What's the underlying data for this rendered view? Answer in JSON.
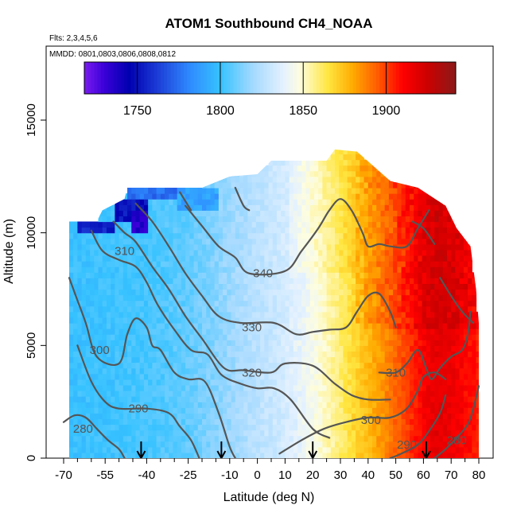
{
  "chart_data": {
    "type": "heatmap",
    "title": "ATOM1 Southbound CH4_NOAA",
    "flights_label": "Flts: 2,3,4,5,6",
    "dates_label": "MMDD: 0801,0803,0806,0808,0812",
    "xlabel": "Latitude (deg N)",
    "ylabel": "Altitude (m)",
    "xlim": [
      -70,
      80
    ],
    "ylim": [
      0,
      18000
    ],
    "x_ticks": [
      -70,
      -55,
      -40,
      -25,
      -10,
      0,
      10,
      20,
      30,
      40,
      50,
      60,
      70,
      80
    ],
    "x_minor_ticks": [
      -65,
      -60,
      -50,
      -45,
      -35,
      -30,
      -20,
      -15,
      -5,
      5,
      15,
      25,
      35,
      45,
      55,
      65,
      75
    ],
    "y_ticks": [
      0,
      5000,
      10000,
      15000
    ],
    "colorbar": {
      "range": [
        1718,
        1942
      ],
      "ticks": [
        1750,
        1800,
        1850,
        1900
      ],
      "stops": [
        {
          "v": 1718,
          "c": "#7a1cf0"
        },
        {
          "v": 1730,
          "c": "#3a00d8"
        },
        {
          "v": 1745,
          "c": "#0000b0"
        },
        {
          "v": 1762,
          "c": "#1c3cd6"
        },
        {
          "v": 1782,
          "c": "#2f8cff"
        },
        {
          "v": 1800,
          "c": "#36c2ff"
        },
        {
          "v": 1820,
          "c": "#a6daff"
        },
        {
          "v": 1838,
          "c": "#e4f1ff"
        },
        {
          "v": 1848,
          "c": "#fdfde0"
        },
        {
          "v": 1865,
          "c": "#ffe640"
        },
        {
          "v": 1880,
          "c": "#ffaa00"
        },
        {
          "v": 1895,
          "c": "#ff5a00"
        },
        {
          "v": 1910,
          "c": "#ff0000"
        },
        {
          "v": 1925,
          "c": "#cc0000"
        },
        {
          "v": 1942,
          "c": "#8b1a1a"
        }
      ]
    },
    "ch4_profile": [
      {
        "lat": -68,
        "ch4": 1800
      },
      {
        "lat": -55,
        "ch4": 1801
      },
      {
        "lat": -40,
        "ch4": 1803
      },
      {
        "lat": -25,
        "ch4": 1808
      },
      {
        "lat": -10,
        "ch4": 1818
      },
      {
        "lat": 0,
        "ch4": 1826
      },
      {
        "lat": 10,
        "ch4": 1833
      },
      {
        "lat": 20,
        "ch4": 1845
      },
      {
        "lat": 25,
        "ch4": 1852
      },
      {
        "lat": 30,
        "ch4": 1860
      },
      {
        "lat": 35,
        "ch4": 1868
      },
      {
        "lat": 40,
        "ch4": 1876
      },
      {
        "lat": 45,
        "ch4": 1884
      },
      {
        "lat": 50,
        "ch4": 1893
      },
      {
        "lat": 55,
        "ch4": 1902
      },
      {
        "lat": 60,
        "ch4": 1912
      },
      {
        "lat": 65,
        "ch4": 1918
      },
      {
        "lat": 70,
        "ch4": 1915
      },
      {
        "lat": 80,
        "ch4": 1905
      }
    ],
    "low_ch4_zones": [
      {
        "lat_min": -65,
        "lat_max": -52,
        "alt_min": 10000,
        "alt_max": 10500,
        "ch4": 1755
      },
      {
        "lat_min": -52,
        "lat_max": -40,
        "alt_min": 10500,
        "alt_max": 11400,
        "ch4": 1750
      },
      {
        "lat_min": -48,
        "lat_max": -30,
        "alt_min": 11400,
        "alt_max": 12000,
        "ch4": 1775
      },
      {
        "lat_min": -30,
        "lat_max": -15,
        "alt_min": 11000,
        "alt_max": 12000,
        "ch4": 1790
      },
      {
        "lat_min": -46,
        "lat_max": -40,
        "alt_min": 10000,
        "alt_max": 11000,
        "ch4": 1735
      }
    ],
    "coverage": [
      {
        "lat": -68,
        "alt_max": 10500
      },
      {
        "lat": -58,
        "alt_max": 10500
      },
      {
        "lat": -56,
        "alt_max": 11000
      },
      {
        "lat": -48,
        "alt_max": 11500
      },
      {
        "lat": -47,
        "alt_max": 12000
      },
      {
        "lat": -20,
        "alt_max": 12000
      },
      {
        "lat": -10,
        "alt_max": 12500
      },
      {
        "lat": 0,
        "alt_max": 12600
      },
      {
        "lat": 5,
        "alt_max": 13200
      },
      {
        "lat": 25,
        "alt_max": 13200
      },
      {
        "lat": 28,
        "alt_max": 13700
      },
      {
        "lat": 36,
        "alt_max": 13600
      },
      {
        "lat": 48,
        "alt_max": 12300
      },
      {
        "lat": 58,
        "alt_max": 12000
      },
      {
        "lat": 68,
        "alt_max": 11200
      },
      {
        "lat": 72,
        "alt_max": 10200
      },
      {
        "lat": 77,
        "alt_max": 9400
      },
      {
        "lat": 79,
        "alt_max": 7500
      },
      {
        "lat": 80,
        "alt_max": 6000
      }
    ],
    "contours": [
      {
        "label": "280",
        "label_at": {
          "lat": -63,
          "alt": 1300
        },
        "points": [
          [
            -70,
            1600
          ],
          [
            -66,
            1900
          ],
          [
            -62,
            1800
          ],
          [
            -58,
            1300
          ],
          [
            -54,
            800
          ],
          [
            -50,
            400
          ],
          [
            -48,
            0
          ]
        ]
      },
      {
        "label": "290",
        "label_at": {
          "lat": -43,
          "alt": 2200
        },
        "points": [
          [
            -65,
            5000
          ],
          [
            -60,
            3400
          ],
          [
            -55,
            2500
          ],
          [
            -50,
            2200
          ],
          [
            -40,
            2200
          ],
          [
            -32,
            2000
          ],
          [
            -28,
            1400
          ],
          [
            -24,
            800
          ],
          [
            -21,
            0
          ]
        ]
      },
      {
        "label": "300",
        "label_at": {
          "lat": -57,
          "alt": 4800
        },
        "points": [
          [
            -68,
            8000
          ],
          [
            -65,
            7000
          ],
          [
            -62,
            6000
          ],
          [
            -58,
            4500
          ],
          [
            -50,
            4200
          ],
          [
            -47,
            5500
          ],
          [
            -44,
            6200
          ],
          [
            -40,
            5800
          ],
          [
            -38,
            5000
          ],
          [
            -35,
            4800
          ],
          [
            -30,
            3800
          ],
          [
            -25,
            3500
          ],
          [
            -19,
            3400
          ],
          [
            -14,
            2000
          ],
          [
            -10,
            500
          ],
          [
            -8,
            0
          ]
        ]
      },
      {
        "label": "310",
        "label_at": {
          "lat": -48,
          "alt": 9200
        },
        "points": [
          [
            -60,
            10100
          ],
          [
            -56,
            9200
          ],
          [
            -50,
            8800
          ],
          [
            -44,
            8500
          ],
          [
            -40,
            7800
          ],
          [
            -36,
            6800
          ],
          [
            -30,
            5700
          ],
          [
            -24,
            4800
          ],
          [
            -18,
            4600
          ],
          [
            -13,
            3700
          ],
          [
            -6,
            3300
          ],
          [
            0,
            3100
          ],
          [
            6,
            3100
          ],
          [
            12,
            2600
          ],
          [
            20,
            1300
          ],
          [
            26,
            900
          ]
        ]
      },
      {
        "label": "320",
        "label_at": {
          "lat": -2,
          "alt": 3800
        },
        "points": [
          [
            -52,
            10500
          ],
          [
            -48,
            10000
          ],
          [
            -44,
            9600
          ],
          [
            -38,
            8500
          ],
          [
            -32,
            7500
          ],
          [
            -26,
            6300
          ],
          [
            -20,
            5300
          ],
          [
            -12,
            4000
          ],
          [
            -5,
            3900
          ],
          [
            5,
            3800
          ],
          [
            10,
            4200
          ],
          [
            20,
            4100
          ],
          [
            28,
            3300
          ],
          [
            34,
            2800
          ],
          [
            40,
            2600
          ],
          [
            48,
            2600
          ]
        ]
      },
      {
        "label": "330",
        "label_at": {
          "lat": -2,
          "alt": 5800
        },
        "points": [
          [
            -44,
            11300
          ],
          [
            -38,
            10500
          ],
          [
            -32,
            9400
          ],
          [
            -26,
            8200
          ],
          [
            -20,
            7200
          ],
          [
            -14,
            6300
          ],
          [
            -6,
            6000
          ],
          [
            6,
            6000
          ],
          [
            14,
            5500
          ],
          [
            20,
            5600
          ],
          [
            26,
            5700
          ],
          [
            32,
            5800
          ],
          [
            36,
            6500
          ],
          [
            40,
            7200
          ],
          [
            44,
            7300
          ],
          [
            48,
            6500
          ],
          [
            50,
            5800
          ]
        ]
      },
      {
        "label": "340",
        "label_at": {
          "lat": 2,
          "alt": 8200
        },
        "points": [
          [
            -26,
            11200
          ],
          [
            -20,
            10300
          ],
          [
            -14,
            9400
          ],
          [
            -8,
            8900
          ],
          [
            -3,
            8200
          ],
          [
            10,
            8300
          ],
          [
            16,
            9200
          ],
          [
            22,
            10200
          ],
          [
            26,
            11000
          ],
          [
            30,
            11500
          ],
          [
            34,
            11000
          ],
          [
            38,
            10000
          ],
          [
            40,
            9400
          ],
          [
            44,
            9500
          ],
          [
            48,
            9400
          ],
          [
            54,
            9400
          ],
          [
            58,
            10200
          ],
          [
            62,
            11000
          ]
        ]
      },
      {
        "label": "310",
        "label_at": {
          "lat": 50,
          "alt": 3800
        },
        "points": [
          [
            44,
            3800
          ],
          [
            50,
            3800
          ],
          [
            54,
            4200
          ],
          [
            58,
            4800
          ],
          [
            61,
            4000
          ],
          [
            63,
            3500
          ],
          [
            66,
            4000
          ],
          [
            70,
            4500
          ],
          [
            74,
            4800
          ],
          [
            76,
            5500
          ],
          [
            77,
            6500
          ]
        ]
      },
      {
        "label": "300",
        "label_at": {
          "lat": 41,
          "alt": 1700
        },
        "points": [
          [
            8,
            200
          ],
          [
            16,
            800
          ],
          [
            24,
            1300
          ],
          [
            32,
            1600
          ],
          [
            40,
            1800
          ],
          [
            48,
            1800
          ],
          [
            54,
            2200
          ],
          [
            58,
            3000
          ],
          [
            60,
            3600
          ],
          [
            64,
            3800
          ],
          [
            68,
            3500
          ]
        ]
      },
      {
        "label": "290",
        "label_at": {
          "lat": 54,
          "alt": 600
        },
        "points": [
          [
            48,
            0
          ],
          [
            52,
            200
          ],
          [
            58,
            600
          ],
          [
            62,
            1200
          ],
          [
            66,
            2000
          ],
          [
            68,
            2800
          ]
        ]
      },
      {
        "label": "280",
        "label_at": {
          "lat": 72,
          "alt": 800
        },
        "points": [
          [
            64,
            0
          ],
          [
            68,
            400
          ],
          [
            72,
            900
          ],
          [
            76,
            1500
          ],
          [
            78,
            2200
          ],
          [
            80,
            3200
          ]
        ]
      }
    ],
    "upper_contours": [
      [
        [
          -28,
          11800
        ],
        [
          -24,
          11000
        ]
      ],
      [
        [
          -8,
          12000
        ],
        [
          -5,
          11200
        ],
        [
          -3,
          11000
        ]
      ],
      [
        [
          56,
          10500
        ],
        [
          60,
          10200
        ],
        [
          64,
          9500
        ]
      ],
      [
        [
          66,
          8000
        ],
        [
          70,
          7200
        ],
        [
          74,
          6500
        ],
        [
          78,
          6000
        ]
      ]
    ],
    "arrows": [
      -42,
      -13,
      20,
      61
    ]
  }
}
